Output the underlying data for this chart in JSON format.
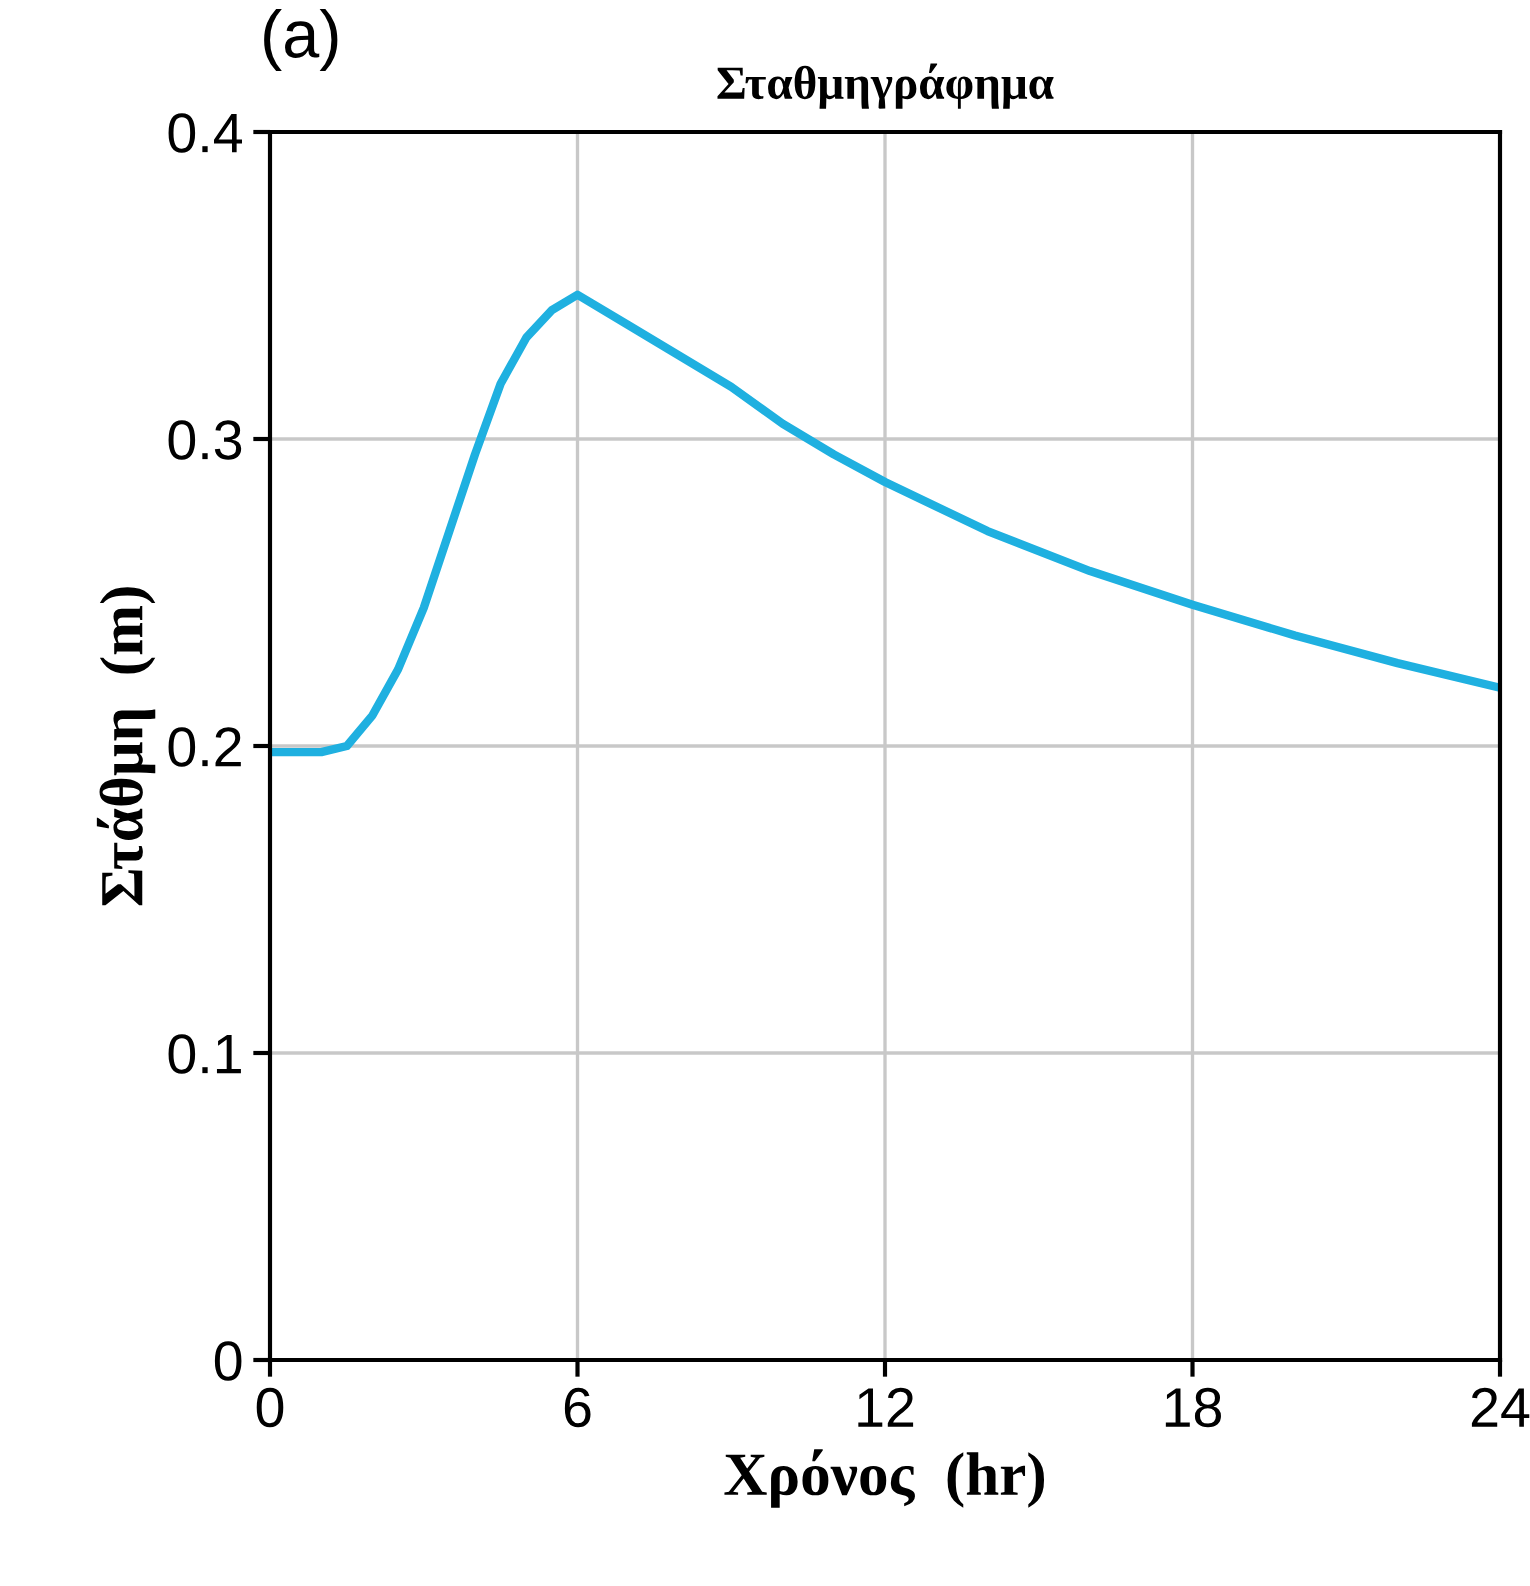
{
  "chart_data": {
    "type": "line",
    "title": "Σταθμηγράφημα",
    "xlabel": "Χρόνος  (hr)",
    "ylabel": "Στάθμη  (m)",
    "annotations": [
      "(a)"
    ],
    "x": [
      0,
      1,
      1.5,
      2,
      2.5,
      3,
      3.5,
      4,
      4.5,
      5,
      5.5,
      6,
      7,
      8,
      9,
      10,
      11,
      12,
      14,
      16,
      18,
      20,
      22,
      24
    ],
    "series": [
      {
        "color": "#1fb0e0",
        "values": [
          0.198,
          0.198,
          0.2,
          0.21,
          0.225,
          0.245,
          0.27,
          0.295,
          0.318,
          0.333,
          0.342,
          0.347,
          0.337,
          0.327,
          0.317,
          0.305,
          0.295,
          0.286,
          0.27,
          0.257,
          0.246,
          0.236,
          0.227,
          0.219
        ]
      }
    ],
    "xlim": [
      0,
      24
    ],
    "xticks": [
      0,
      6,
      12,
      18,
      24
    ],
    "ylim": [
      0,
      0.4
    ],
    "yticks": [
      0,
      0.1,
      0.2,
      0.3,
      0.4
    ],
    "grid": true,
    "marker": "none",
    "line_style": "solid",
    "legend": false
  }
}
